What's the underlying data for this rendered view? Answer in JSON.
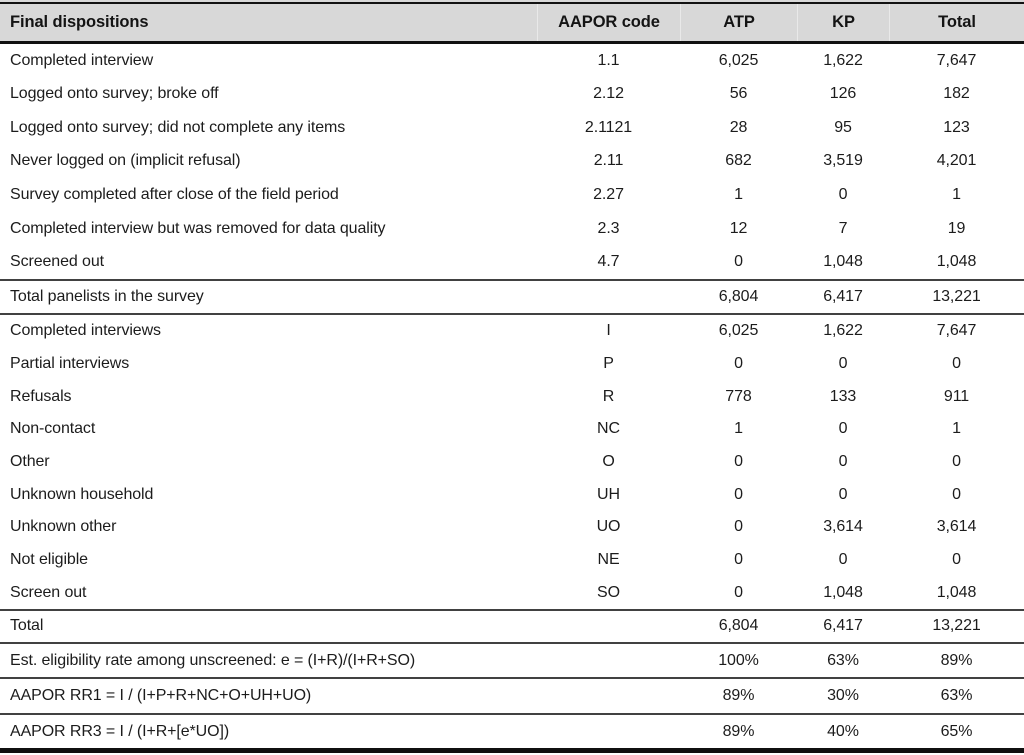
{
  "header": {
    "columns": [
      "Final dispositions",
      "AAPOR code",
      "ATP",
      "KP",
      "Total"
    ]
  },
  "dispositions": [
    {
      "label": "Completed interview",
      "code": "1.1",
      "atp": "6,025",
      "kp": "1,622",
      "total": "7,647"
    },
    {
      "label": "Logged onto survey; broke off",
      "code": "2.12",
      "atp": "56",
      "kp": "126",
      "total": "182"
    },
    {
      "label": "Logged onto survey; did not complete any items",
      "code": "2.1121",
      "atp": "28",
      "kp": "95",
      "total": "123"
    },
    {
      "label": "Never logged on (implicit refusal)",
      "code": "2.11",
      "atp": "682",
      "kp": "3,519",
      "total": "4,201"
    },
    {
      "label": "Survey completed after close of the field period",
      "code": "2.27",
      "atp": "1",
      "kp": "0",
      "total": "1"
    },
    {
      "label": "Completed interview but was removed for data quality",
      "code": "2.3",
      "atp": "12",
      "kp": "7",
      "total": "19"
    },
    {
      "label": "Screened out",
      "code": "4.7",
      "atp": "0",
      "kp": "1,048",
      "total": "1,048"
    }
  ],
  "total_panelists": {
    "label": "Total panelists in the survey",
    "code": "",
    "atp": "6,804",
    "kp": "6,417",
    "total": "13,221"
  },
  "aapor_categories": [
    {
      "label": "Completed interviews",
      "code": "I",
      "atp": "6,025",
      "kp": "1,622",
      "total": "7,647"
    },
    {
      "label": "Partial interviews",
      "code": "P",
      "atp": "0",
      "kp": "0",
      "total": "0"
    },
    {
      "label": "Refusals",
      "code": "R",
      "atp": "778",
      "kp": "133",
      "total": "911"
    },
    {
      "label": "Non-contact",
      "code": "NC",
      "atp": "1",
      "kp": "0",
      "total": "1"
    },
    {
      "label": "Other",
      "code": "O",
      "atp": "0",
      "kp": "0",
      "total": "0"
    },
    {
      "label": "Unknown household",
      "code": "UH",
      "atp": "0",
      "kp": "0",
      "total": "0"
    },
    {
      "label": "Unknown other",
      "code": "UO",
      "atp": "0",
      "kp": "3,614",
      "total": "3,614"
    },
    {
      "label": "Not eligible",
      "code": "NE",
      "atp": "0",
      "kp": "0",
      "total": "0"
    },
    {
      "label": "Screen out",
      "code": "SO",
      "atp": "0",
      "kp": "1,048",
      "total": "1,048"
    }
  ],
  "grand_total": {
    "label": "Total",
    "code": "",
    "atp": "6,804",
    "kp": "6,417",
    "total": "13,221"
  },
  "rates": [
    {
      "label": "Est. eligibility rate among unscreened: e = (I+R)/(I+R+SO)",
      "code": "",
      "atp": "100%",
      "kp": "63%",
      "total": "89%"
    },
    {
      "label": "AAPOR RR1 = I / (I+P+R+NC+O+UH+UO)",
      "code": "",
      "atp": "89%",
      "kp": "30%",
      "total": "63%"
    },
    {
      "label": "AAPOR RR3 = I / (I+R+[e*UO])",
      "code": "",
      "atp": "89%",
      "kp": "40%",
      "total": "65%"
    }
  ],
  "colors": {
    "header_bg": "#d8d8d8",
    "border_black": "#111111",
    "separator": "#414141",
    "text": "#1c1c1c"
  }
}
